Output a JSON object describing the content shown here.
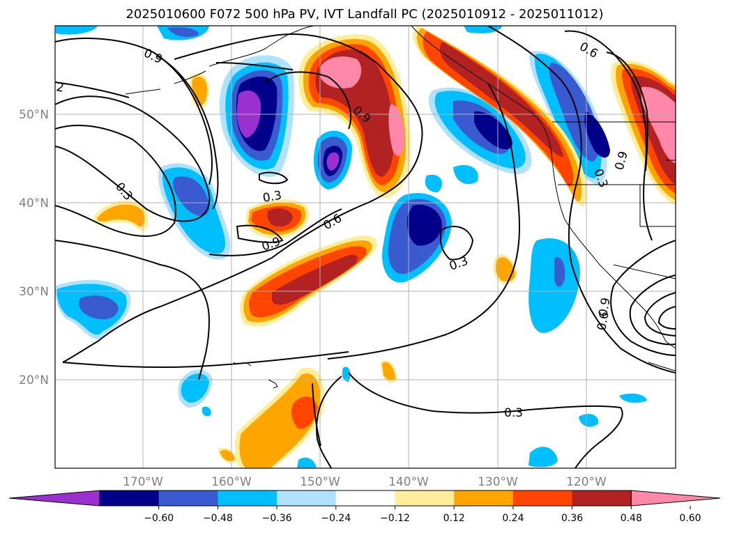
{
  "title": "2025010600 F072 500 hPa PV, IVT Landfall PC (2025010912 - 2025011012)",
  "map": {
    "lon_range": [
      -180,
      -110
    ],
    "lat_range": [
      10,
      60
    ],
    "lon_ticks": [
      "170°W",
      "160°W",
      "150°W",
      "140°W",
      "130°W",
      "120°W"
    ],
    "lat_ticks": [
      "50°N",
      "40°N",
      "30°N",
      "20°N"
    ],
    "grid": true,
    "contour_labels": [
      "0.9",
      "2",
      "0.9",
      "0.3",
      "0.3",
      "0.6",
      "0.9",
      "0.3",
      "0.6",
      "0.9",
      "0.3",
      "0.9",
      "0.6",
      "0.3"
    ]
  },
  "colorbar": {
    "ticks": [
      "−0.60",
      "−0.48",
      "−0.36",
      "−0.24",
      "−0.12",
      "0.12",
      "0.24",
      "0.36",
      "0.48",
      "0.60"
    ],
    "colors": [
      "#9b30d0",
      "#00008b",
      "#3a5bd0",
      "#00bfff",
      "#b0e2ff",
      "#ffffff",
      "#ffee99",
      "#ffa500",
      "#ff4500",
      "#b22222",
      "#ff88aa"
    ],
    "extend": "both"
  }
}
